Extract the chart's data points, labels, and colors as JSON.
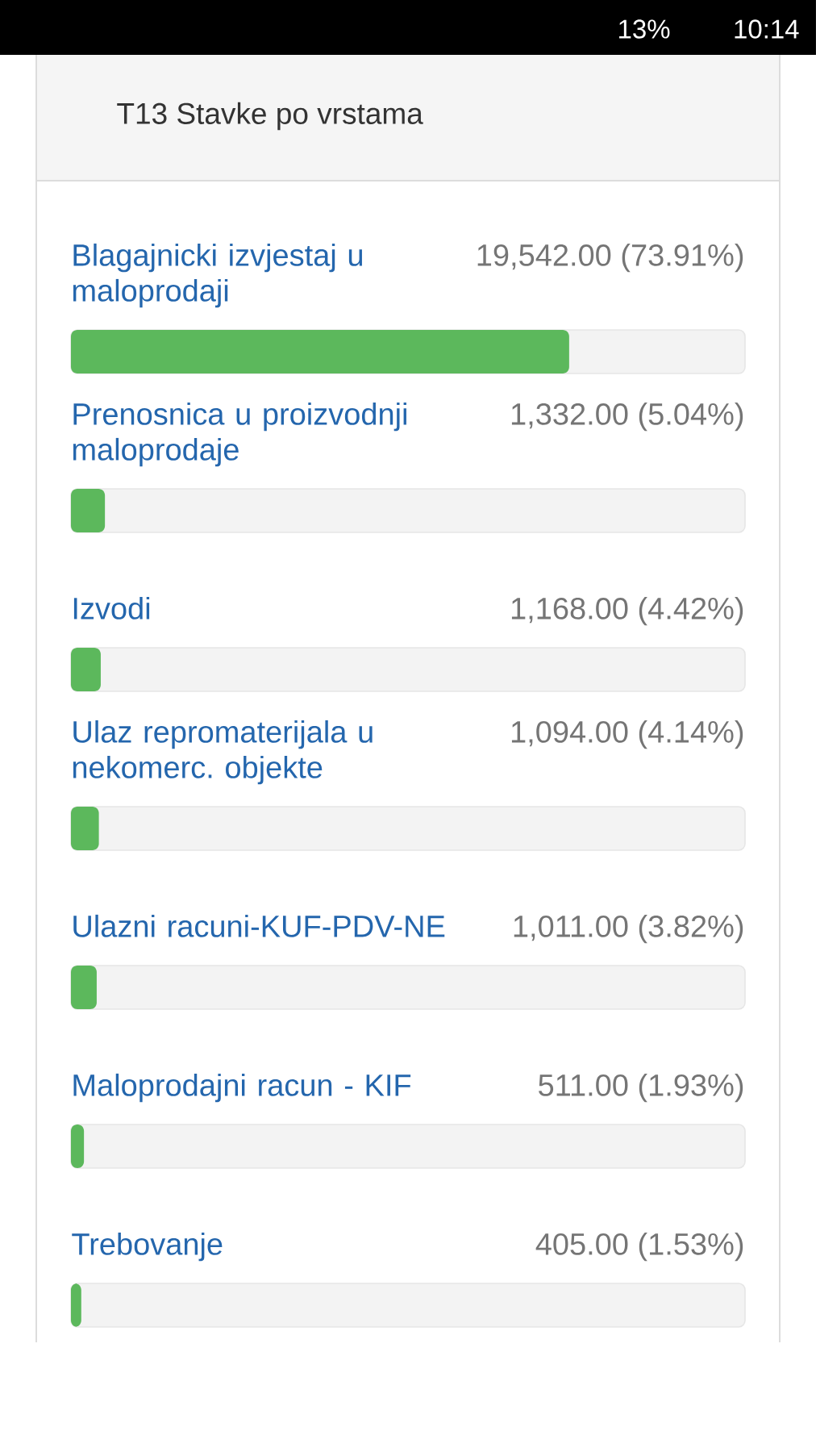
{
  "chart_data": {
    "type": "bar",
    "orientation": "horizontal",
    "title": "T13 Stavke po vrstama",
    "categories": [
      "Blagajnicki izvjestaj u maloprodaji",
      "Prenosnica u proizvodnji maloprodaje",
      "Izvodi",
      "Ulaz repromaterijala u nekomerc. objekte",
      "Ulazni racuni-KUF-PDV-NE",
      "Maloprodajni racun - KIF",
      "Trebovanje"
    ],
    "values": [
      73.91,
      5.04,
      4.42,
      4.14,
      3.82,
      1.93,
      1.53
    ],
    "value_labels": [
      "19,542.00 (73.91%)",
      "1,332.00 (5.04%)",
      "1,168.00 (4.42%)",
      "1,094.00 (4.14%)",
      "1,011.00 (3.82%)",
      "511.00 (1.93%)",
      "405.00 (1.53%)"
    ],
    "color": "#5cb85c",
    "xlim": [
      0,
      100
    ],
    "tick_labels": false,
    "annotations": [
      "13%",
      "10:14"
    ]
  }
}
